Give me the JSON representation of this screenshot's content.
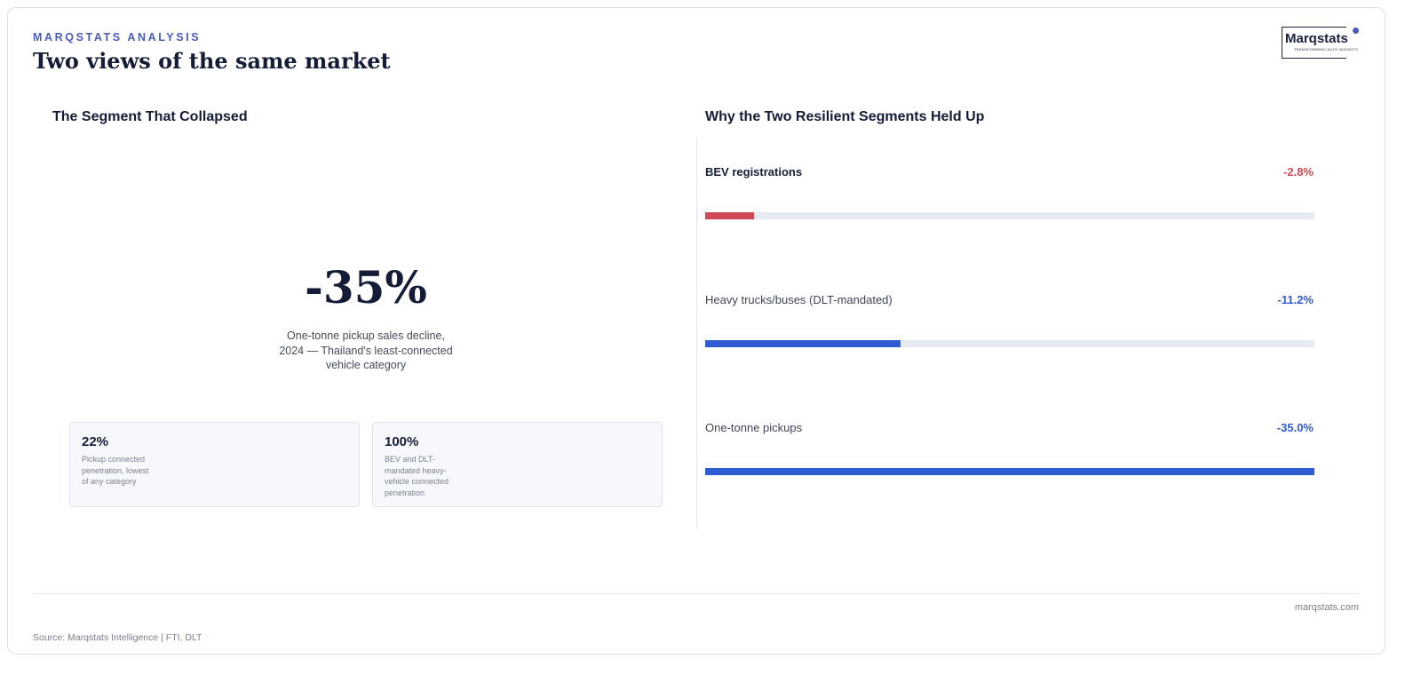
{
  "header": {
    "kicker": "MARQSTATS ANALYSIS",
    "title": "Two views of the same market",
    "logo": "Marqstats",
    "logo_tagline": "TRANSFORMING AUTO INSIGHTS"
  },
  "left": {
    "title": "The Segment That Collapsed",
    "big_stat": "-35%",
    "caption": "One-tonne pickup sales decline, 2024 — Thailand's least-connected vehicle category",
    "cards": [
      {
        "value": "22%",
        "text": "Pickup connected penetration, lowest of any category"
      },
      {
        "value": "100%",
        "text": "BEV and DLT-mandated heavy-vehicle connected penetration"
      }
    ]
  },
  "right": {
    "title": "Why the Two Resilient Segments Held Up",
    "bars": [
      {
        "name": "BEV registrations",
        "value": -2.8,
        "value_label": "-2.8%",
        "color": "#d04a55"
      },
      {
        "name": "Heavy trucks/buses (DLT-mandated)",
        "value": -11.2,
        "value_label": "-11.2%",
        "color": "#2f5bd3"
      },
      {
        "name": "One-tonne pickups",
        "value": -35.0,
        "value_label": "-35.0%",
        "color": "#2f5bd3"
      }
    ]
  },
  "footer": {
    "site": "marqstats.com",
    "source": "Source: Marqstats Intelligence | FTI, DLT"
  }
}
